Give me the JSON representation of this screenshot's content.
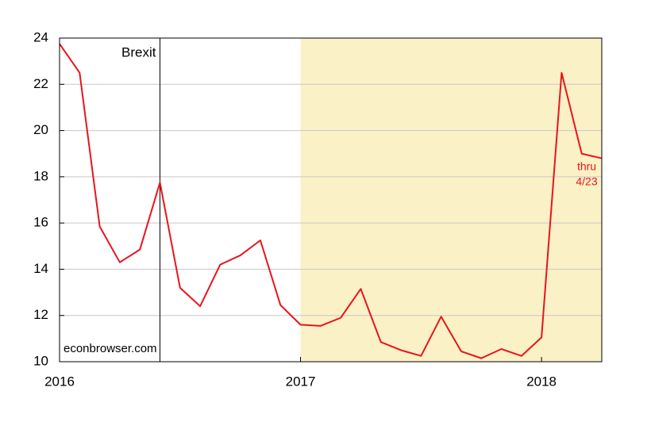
{
  "chart_data": {
    "type": "line",
    "categories": [
      "2016",
      null,
      null,
      null,
      null,
      null,
      null,
      null,
      null,
      null,
      null,
      null,
      "2017",
      null,
      null,
      null,
      null,
      null,
      null,
      null,
      null,
      null,
      null,
      null,
      "2018",
      null,
      null,
      null
    ],
    "series": [
      {
        "color": "#e8141c",
        "values": [
          23.75,
          22.5,
          15.85,
          14.3,
          14.85,
          17.75,
          13.2,
          12.4,
          14.2,
          14.6,
          15.25,
          12.45,
          11.6,
          11.55,
          11.9,
          13.15,
          10.85,
          10.5,
          10.25,
          11.95,
          10.45,
          10.15,
          10.55,
          10.25,
          11.05,
          22.5,
          19.0,
          18.8
        ]
      }
    ],
    "ylim": [
      10,
      24
    ],
    "yticks": [
      10,
      12,
      14,
      16,
      18,
      20,
      22,
      24
    ],
    "grid": true,
    "shade_start": "2017",
    "shade_color": "#fbf1c6",
    "vline": {
      "text": "Brexit",
      "at": 5
    },
    "end_note": [
      "thru",
      "4/23"
    ],
    "source": "econbrowser.com"
  }
}
